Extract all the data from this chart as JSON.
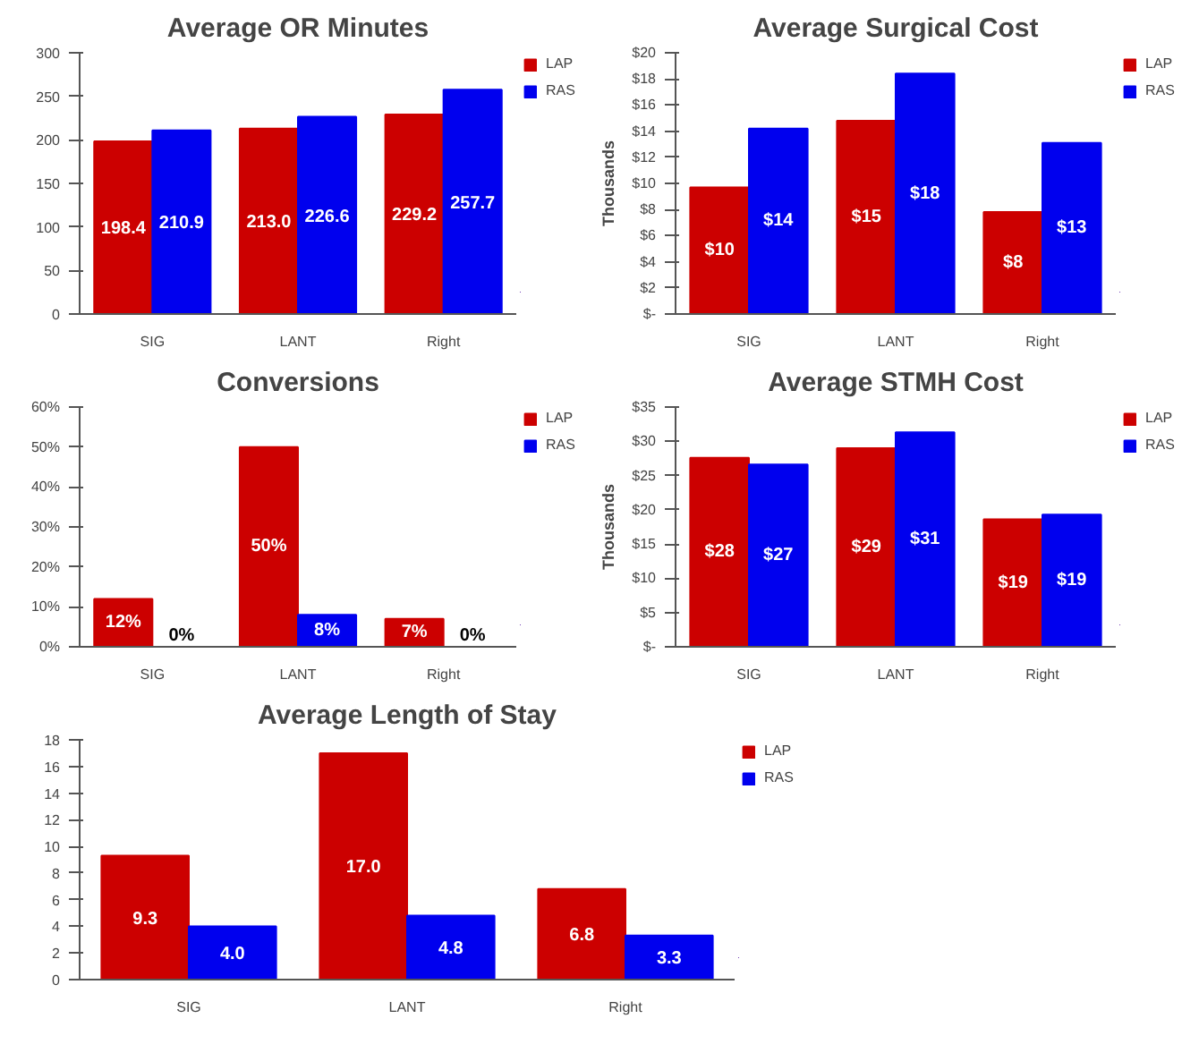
{
  "chart_data": [
    {
      "type": "bar",
      "title": "Average OR Minutes",
      "categories": [
        "SIG",
        "LANT",
        "Right"
      ],
      "series": [
        {
          "name": "LAP",
          "color": "#cc0000",
          "values": [
            198.4,
            213.0,
            229.2
          ],
          "value_labels": [
            "198.4",
            "213.0",
            "229.2"
          ]
        },
        {
          "name": "RAS",
          "color": "#0000ee",
          "values": [
            210.9,
            226.6,
            257.7
          ],
          "value_labels": [
            "210.9",
            "226.6",
            "257.7"
          ]
        }
      ],
      "ylim": [
        0,
        300
      ],
      "yticks": [
        0,
        50,
        100,
        150,
        200,
        250,
        300
      ],
      "grid": false,
      "legend": "top right"
    },
    {
      "type": "bar",
      "title": "Average Surgical Cost",
      "ylabel": "Thousands",
      "categories": [
        "SIG",
        "LANT",
        "Right"
      ],
      "series": [
        {
          "name": "LAP",
          "color": "#cc0000",
          "values": [
            9.7,
            14.8,
            7.8
          ],
          "value_labels": [
            "$10",
            "$15",
            "$8"
          ]
        },
        {
          "name": "RAS",
          "color": "#0000ee",
          "values": [
            14.2,
            18.4,
            13.1
          ],
          "value_labels": [
            "$14",
            "$18",
            "$13"
          ]
        }
      ],
      "ylim": [
        0,
        20
      ],
      "yticks": [
        {
          "value": 0,
          "label": "$-"
        },
        {
          "value": 2,
          "label": "$2"
        },
        {
          "value": 4,
          "label": "$4"
        },
        {
          "value": 6,
          "label": "$6"
        },
        {
          "value": 8,
          "label": "$8"
        },
        {
          "value": 10,
          "label": "$10"
        },
        {
          "value": 12,
          "label": "$12"
        },
        {
          "value": 14,
          "label": "$14"
        },
        {
          "value": 16,
          "label": "$16"
        },
        {
          "value": 18,
          "label": "$18"
        },
        {
          "value": 20,
          "label": "$20"
        }
      ],
      "grid": false,
      "legend": "top right"
    },
    {
      "type": "bar",
      "title": "Conversions",
      "categories": [
        "SIG",
        "LANT",
        "Right"
      ],
      "series": [
        {
          "name": "LAP",
          "color": "#cc0000",
          "values": [
            12,
            50,
            7
          ],
          "value_labels": [
            "12%",
            "50%",
            "7%"
          ]
        },
        {
          "name": "RAS",
          "color": "#0000ee",
          "values": [
            0,
            8,
            0
          ],
          "value_labels": [
            "0%",
            "8%",
            "0%"
          ]
        }
      ],
      "ylim": [
        0,
        60
      ],
      "yticks": [
        {
          "value": 0,
          "label": "0%"
        },
        {
          "value": 10,
          "label": "10%"
        },
        {
          "value": 20,
          "label": "20%"
        },
        {
          "value": 30,
          "label": "30%"
        },
        {
          "value": 40,
          "label": "40%"
        },
        {
          "value": 50,
          "label": "50%"
        },
        {
          "value": 60,
          "label": "60%"
        }
      ],
      "grid": false,
      "legend": "top right"
    },
    {
      "type": "bar",
      "title": "Average STMH Cost",
      "ylabel": "Thousands",
      "categories": [
        "SIG",
        "LANT",
        "Right"
      ],
      "series": [
        {
          "name": "LAP",
          "color": "#cc0000",
          "values": [
            27.6,
            29.0,
            18.6
          ],
          "value_labels": [
            "$28",
            "$29",
            "$19"
          ]
        },
        {
          "name": "RAS",
          "color": "#0000ee",
          "values": [
            26.6,
            31.3,
            19.3
          ],
          "value_labels": [
            "$27",
            "$31",
            "$19"
          ]
        }
      ],
      "ylim": [
        0,
        35
      ],
      "yticks": [
        {
          "value": 0,
          "label": "$-"
        },
        {
          "value": 5,
          "label": "$5"
        },
        {
          "value": 10,
          "label": "$10"
        },
        {
          "value": 15,
          "label": "$15"
        },
        {
          "value": 20,
          "label": "$20"
        },
        {
          "value": 25,
          "label": "$25"
        },
        {
          "value": 30,
          "label": "$30"
        },
        {
          "value": 35,
          "label": "$35"
        }
      ],
      "grid": false,
      "legend": "top right"
    },
    {
      "type": "bar",
      "title": "Average Length of Stay",
      "categories": [
        "SIG",
        "LANT",
        "Right"
      ],
      "series": [
        {
          "name": "LAP",
          "color": "#cc0000",
          "values": [
            9.3,
            17.0,
            6.8
          ],
          "value_labels": [
            "9.3",
            "17.0",
            "6.8"
          ]
        },
        {
          "name": "RAS",
          "color": "#0000ee",
          "values": [
            4.0,
            4.8,
            3.3
          ],
          "value_labels": [
            "4.0",
            "4.8",
            "3.3"
          ]
        }
      ],
      "ylim": [
        0,
        18
      ],
      "yticks": [
        0,
        2,
        4,
        6,
        8,
        10,
        12,
        14,
        16,
        18
      ],
      "grid": false,
      "legend": "top right"
    }
  ]
}
